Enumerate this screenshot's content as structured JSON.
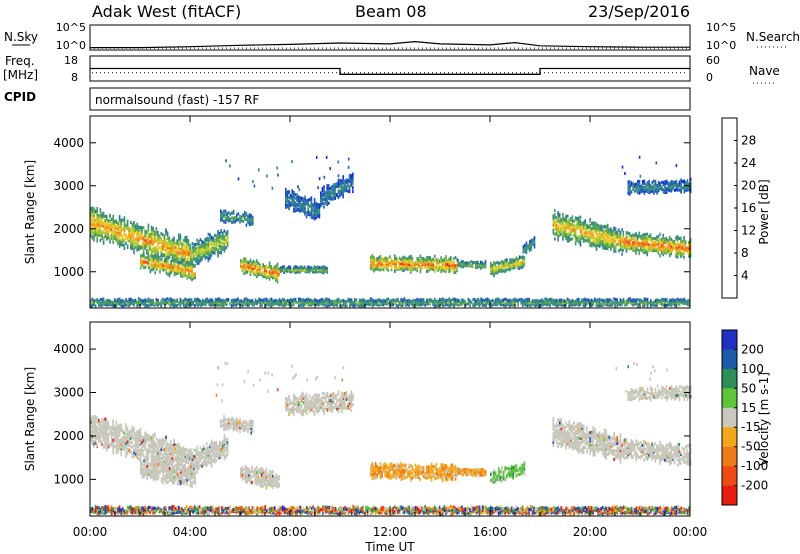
{
  "header": {
    "station": "Adak West (fitACF)",
    "beam": "Beam 08",
    "date": "23/Sep/2016"
  },
  "chart_data": [
    {
      "type": "line",
      "name": "noise-panel",
      "left_label": "N.Sky",
      "right_label": "N.Search",
      "left_ticks": [
        "10^5",
        "10^0"
      ],
      "right_ticks": [
        "10^5",
        "10^0"
      ],
      "x_hours": [
        0,
        2,
        4,
        6,
        8,
        10,
        12,
        13,
        14,
        16,
        17,
        18,
        20,
        22,
        24
      ],
      "n_sky_log10": [
        0.3,
        0.3,
        0.5,
        0.8,
        1.0,
        1.3,
        1.1,
        1.6,
        1.1,
        0.9,
        1.4,
        0.7,
        0.5,
        0.4,
        0.4
      ],
      "n_search_log10": [
        0.2,
        0.2,
        0.2,
        0.2,
        0.2,
        0.2,
        0.2,
        0.2,
        0.2,
        0.2,
        0.2,
        0.2,
        0.2,
        0.2,
        0.2
      ]
    },
    {
      "type": "line",
      "name": "frequency-panel",
      "left_label_top": "Freq.",
      "left_label_bottom": "[MHz]",
      "right_label": "Nave",
      "left_ticks": [
        18,
        8
      ],
      "right_ticks": [
        60,
        0
      ],
      "freq_mhz": [
        {
          "start_h": 0,
          "end_h": 10,
          "value": 13.0
        },
        {
          "start_h": 10,
          "end_h": 18,
          "value": 10.5
        },
        {
          "start_h": 18,
          "end_h": 24,
          "value": 13.0
        }
      ],
      "nave_value": 19
    },
    {
      "type": "table",
      "name": "cpid-panel",
      "label": "CPID",
      "text": "normalsound (fast) -157 RF"
    },
    {
      "type": "heatmap",
      "name": "power-panel",
      "ylabel": "Slant Range [km]",
      "yticks": [
        1000,
        2000,
        3000,
        4000
      ],
      "ylim": [
        180,
        4600
      ],
      "xlim": [
        0,
        24
      ],
      "colorbar": {
        "label": "Power [dB]",
        "ticks": [
          4,
          8,
          12,
          16,
          20,
          24,
          28
        ],
        "min": 0,
        "max": 32,
        "colors": [
          "#1030e0",
          "#1f56b8",
          "#2f7f96",
          "#3d9470",
          "#57a64a",
          "#9ec635",
          "#e6d023",
          "#f2a81d",
          "#f07c18",
          "#ee4a16",
          "#e61e12"
        ]
      },
      "features": [
        {
          "h0": 0.0,
          "h1": 4.0,
          "r0": 2150,
          "r1": 1400,
          "width": 650,
          "peak": 22
        },
        {
          "h0": 4.0,
          "h1": 5.5,
          "r0": 1400,
          "r1": 1750,
          "width": 500,
          "peak": 16
        },
        {
          "h0": 2.0,
          "h1": 4.2,
          "r0": 1250,
          "r1": 1000,
          "width": 350,
          "peak": 22
        },
        {
          "h0": 5.2,
          "h1": 6.5,
          "r0": 2300,
          "r1": 2200,
          "width": 250,
          "peak": 10
        },
        {
          "h0": 6.0,
          "h1": 7.6,
          "r0": 1150,
          "r1": 950,
          "width": 350,
          "peak": 24
        },
        {
          "h0": 7.6,
          "h1": 9.5,
          "r0": 1050,
          "r1": 1050,
          "width": 120,
          "peak": 14
        },
        {
          "h0": 7.8,
          "h1": 9.2,
          "r0": 2700,
          "r1": 2400,
          "width": 400,
          "peak": 8
        },
        {
          "h0": 9.2,
          "h1": 10.5,
          "r0": 2700,
          "r1": 3100,
          "width": 400,
          "peak": 8
        },
        {
          "h0": 11.2,
          "h1": 14.7,
          "r0": 1200,
          "r1": 1150,
          "width": 320,
          "peak": 24
        },
        {
          "h0": 14.7,
          "h1": 15.8,
          "r0": 1180,
          "r1": 1150,
          "width": 120,
          "peak": 14
        },
        {
          "h0": 16.0,
          "h1": 17.4,
          "r0": 1050,
          "r1": 1250,
          "width": 250,
          "peak": 18
        },
        {
          "h0": 17.3,
          "h1": 17.8,
          "r0": 1500,
          "r1": 1700,
          "width": 200,
          "peak": 10
        },
        {
          "h0": 18.5,
          "h1": 21.3,
          "r0": 2100,
          "r1": 1700,
          "width": 550,
          "peak": 20
        },
        {
          "h0": 21.3,
          "h1": 24.0,
          "r0": 1700,
          "r1": 1550,
          "width": 400,
          "peak": 24
        },
        {
          "h0": 21.5,
          "h1": 24.0,
          "r0": 2950,
          "r1": 3000,
          "width": 250,
          "peak": 8
        },
        {
          "h0": 0.0,
          "h1": 24.0,
          "r0": 280,
          "r1": 280,
          "width": 140,
          "peak": 12
        }
      ]
    },
    {
      "type": "heatmap",
      "name": "velocity-panel",
      "ylabel": "Slant Range [km]",
      "yticks": [
        1000,
        2000,
        3000,
        4000
      ],
      "ylim": [
        180,
        4600
      ],
      "xlim": [
        0,
        24
      ],
      "xticks": [
        "00:00",
        "04:00",
        "08:00",
        "12:00",
        "16:00",
        "20:00",
        "00:00"
      ],
      "xlabel": "Time UT",
      "colorbar": {
        "label": "Velocity [m s-1]",
        "ticks": [
          "200",
          "100",
          "50",
          "15",
          "-15",
          "-50",
          "-100",
          "-200"
        ],
        "colors": [
          "#2030c0",
          "#1e5aa8",
          "#2e8e58",
          "#5ec43a",
          "#c8c8bc",
          "#f2a81d",
          "#f07c18",
          "#ee4a16",
          "#e61e12"
        ]
      },
      "features": [
        {
          "h0": 0.0,
          "h1": 4.0,
          "r0": 2150,
          "r1": 1400,
          "width": 650,
          "kind": "ground"
        },
        {
          "h0": 4.0,
          "h1": 5.5,
          "r0": 1400,
          "r1": 1750,
          "width": 500,
          "kind": "ground"
        },
        {
          "h0": 2.0,
          "h1": 4.2,
          "r0": 1250,
          "r1": 1000,
          "width": 350,
          "kind": "ground"
        },
        {
          "h0": 5.2,
          "h1": 6.5,
          "r0": 2300,
          "r1": 2200,
          "width": 250,
          "kind": "ground"
        },
        {
          "h0": 6.0,
          "h1": 7.6,
          "r0": 1150,
          "r1": 950,
          "width": 350,
          "kind": "ground"
        },
        {
          "h0": 7.8,
          "h1": 10.5,
          "r0": 2700,
          "r1": 2800,
          "width": 400,
          "kind": "ground"
        },
        {
          "h0": 11.2,
          "h1": 14.7,
          "r0": 1200,
          "r1": 1150,
          "width": 320,
          "kind": "away"
        },
        {
          "h0": 14.7,
          "h1": 15.8,
          "r0": 1180,
          "r1": 1150,
          "width": 120,
          "kind": "away"
        },
        {
          "h0": 16.0,
          "h1": 17.4,
          "r0": 1050,
          "r1": 1250,
          "width": 250,
          "kind": "toward"
        },
        {
          "h0": 18.5,
          "h1": 21.3,
          "r0": 2100,
          "r1": 1700,
          "width": 550,
          "kind": "ground"
        },
        {
          "h0": 21.3,
          "h1": 24.0,
          "r0": 1700,
          "r1": 1550,
          "width": 400,
          "kind": "ground"
        },
        {
          "h0": 21.5,
          "h1": 24.0,
          "r0": 2950,
          "r1": 3000,
          "width": 250,
          "kind": "ground"
        },
        {
          "h0": 0.0,
          "h1": 24.0,
          "r0": 280,
          "r1": 280,
          "width": 140,
          "kind": "mixed"
        }
      ]
    }
  ]
}
